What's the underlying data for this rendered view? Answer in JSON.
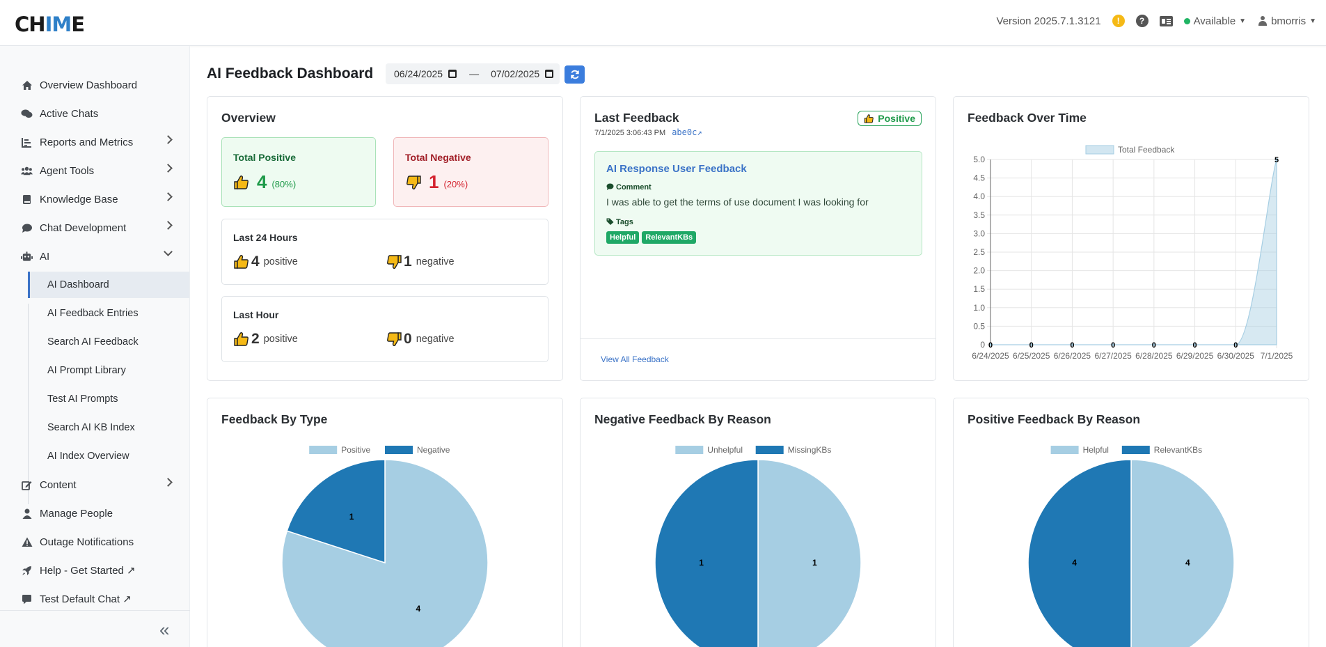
{
  "header": {
    "logo_pre": "CH",
    "logo_accent": "IM",
    "logo_post": "E",
    "version": "Version 2025.7.1.3121",
    "warning_glyph": "!",
    "help_glyph": "?",
    "status": "Available",
    "user": "bmorris"
  },
  "sidebar": {
    "items": [
      {
        "label": "Overview Dashboard",
        "icon": "home-icon"
      },
      {
        "label": "Active Chats",
        "icon": "chats-icon"
      },
      {
        "label": "Reports and Metrics",
        "icon": "reports-icon"
      },
      {
        "label": "Agent Tools",
        "icon": "users-icon"
      },
      {
        "label": "Knowledge Base",
        "icon": "book-icon"
      },
      {
        "label": "Chat Development",
        "icon": "chat-icon"
      },
      {
        "label": "AI",
        "icon": "robot-icon"
      },
      {
        "label": "Content",
        "icon": "edit-icon"
      },
      {
        "label": "Manage People",
        "icon": "person-icon"
      },
      {
        "label": "Outage Notifications",
        "icon": "warning-icon"
      },
      {
        "label": "Help - Get Started ↗",
        "icon": "rocket-icon"
      },
      {
        "label": "Test Default Chat ↗",
        "icon": "message-icon"
      }
    ],
    "ai_sub": [
      "AI Dashboard",
      "AI Feedback Entries",
      "Search AI Feedback",
      "AI Prompt Library",
      "Test AI Prompts",
      "Search AI KB Index",
      "AI Index Overview"
    ],
    "collapse_glyph": "«"
  },
  "page": {
    "title": "AI Feedback Dashboard",
    "date_from": "06/24/2025",
    "date_to": "07/02/2025",
    "date_sep": "—"
  },
  "overview": {
    "title": "Overview",
    "total_positive_label": "Total Positive",
    "total_positive": "4",
    "total_positive_pct": "(80%)",
    "total_negative_label": "Total Negative",
    "total_negative": "1",
    "total_negative_pct": "(20%)",
    "last24_label": "Last 24 Hours",
    "last24_pos": "4",
    "last24_neg": "1",
    "lasthour_label": "Last Hour",
    "lasthour_pos": "2",
    "lasthour_neg": "0",
    "positive_word": "positive",
    "negative_word": "negative"
  },
  "last_feedback": {
    "title": "Last Feedback",
    "badge": "Positive",
    "timestamp": "7/1/2025 3:06:43 PM",
    "id_link": "abe0c↗",
    "box_title": "AI Response User Feedback",
    "comment_label": "Comment",
    "comment": "I was able to get the terms of use document I was looking for",
    "tags_label": "Tags",
    "tags": [
      "Helpful",
      "RelevantKBs"
    ],
    "view_all": "View All Feedback"
  },
  "titles": {
    "over_time": "Feedback Over Time",
    "by_type": "Feedback By Type",
    "neg_reason": "Negative Feedback By Reason",
    "pos_reason": "Positive Feedback By Reason"
  },
  "chart_data": [
    {
      "type": "area",
      "title": "Feedback Over Time",
      "categories": [
        "6/24/2025",
        "6/25/2025",
        "6/26/2025",
        "6/27/2025",
        "6/28/2025",
        "6/29/2025",
        "6/30/2025",
        "7/1/2025"
      ],
      "series": [
        {
          "name": "Total Feedback",
          "values": [
            0,
            0,
            0,
            0,
            0,
            0,
            0,
            5
          ]
        }
      ],
      "ylim": [
        0,
        5
      ],
      "yticks": [
        "0",
        "0.5",
        "1.0",
        "1.5",
        "2.0",
        "2.5",
        "3.0",
        "3.5",
        "4.0",
        "4.5",
        "5.0"
      ],
      "grid": true,
      "legend": "top",
      "color": "#a6cee3"
    },
    {
      "type": "pie",
      "title": "Feedback By Type",
      "labels": [
        "Positive",
        "Negative"
      ],
      "values": [
        4,
        1
      ],
      "colors": [
        "#a6cee3",
        "#1f78b4"
      ],
      "legend": "top"
    },
    {
      "type": "pie",
      "title": "Negative Feedback By Reason",
      "labels": [
        "Unhelpful",
        "MissingKBs"
      ],
      "values": [
        1,
        1
      ],
      "colors": [
        "#a6cee3",
        "#1f78b4"
      ],
      "legend": "top"
    },
    {
      "type": "pie",
      "title": "Positive Feedback By Reason",
      "labels": [
        "Helpful",
        "RelevantKBs"
      ],
      "values": [
        4,
        4
      ],
      "colors": [
        "#a6cee3",
        "#1f78b4"
      ],
      "legend": "top"
    }
  ]
}
